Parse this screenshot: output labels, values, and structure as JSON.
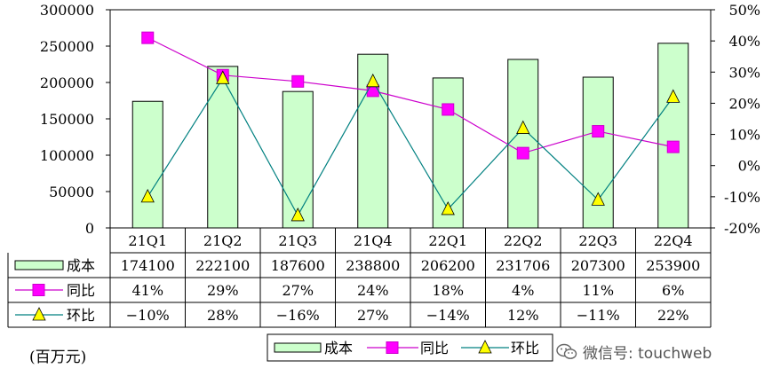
{
  "chart_data": {
    "type": "bar+line",
    "categories": [
      "21Q1",
      "21Q2",
      "21Q3",
      "21Q4",
      "22Q1",
      "22Q2",
      "22Q3",
      "22Q4"
    ],
    "series": [
      {
        "name": "成本",
        "kind": "bar",
        "axis": "left",
        "color": "#CCFFCC",
        "values": [
          174100,
          222100,
          187600,
          238800,
          206200,
          231706,
          207300,
          253900
        ],
        "labels": [
          "174100",
          "222100",
          "187600",
          "238800",
          "206200",
          "231706",
          "207300",
          "253900"
        ]
      },
      {
        "name": "同比",
        "kind": "line",
        "axis": "right",
        "color": "#CC00CC",
        "marker": "square",
        "values": [
          41,
          29,
          27,
          24,
          18,
          4,
          11,
          6
        ],
        "labels": [
          "41%",
          "29%",
          "27%",
          "24%",
          "18%",
          "4%",
          "11%",
          "6%"
        ]
      },
      {
        "name": "环比",
        "kind": "line",
        "axis": "right",
        "color": "#008080",
        "marker": "triangle",
        "values": [
          -10,
          28,
          -16,
          27,
          -14,
          12,
          -11,
          22
        ],
        "labels": [
          "−10%",
          "28%",
          "−16%",
          "27%",
          "−14%",
          "12%",
          "−11%",
          "22%"
        ]
      }
    ],
    "y_left": {
      "min": 0,
      "max": 300000,
      "ticks": [
        0,
        50000,
        100000,
        150000,
        200000,
        250000,
        300000
      ],
      "tick_labels": [
        "0",
        "50000",
        "100000",
        "150000",
        "200000",
        "250000",
        "300000"
      ]
    },
    "y_right": {
      "min": -20,
      "max": 50,
      "ticks": [
        -20,
        -10,
        0,
        10,
        20,
        30,
        40,
        50
      ],
      "tick_labels": [
        "-20%",
        "-10%",
        "0%",
        "10%",
        "20%",
        "30%",
        "40%",
        "50%"
      ]
    },
    "grid": false,
    "legend_placement": "bottom-center",
    "data_table": true
  },
  "unit_label": "(百万元)",
  "watermark": "微信号: touchweb"
}
